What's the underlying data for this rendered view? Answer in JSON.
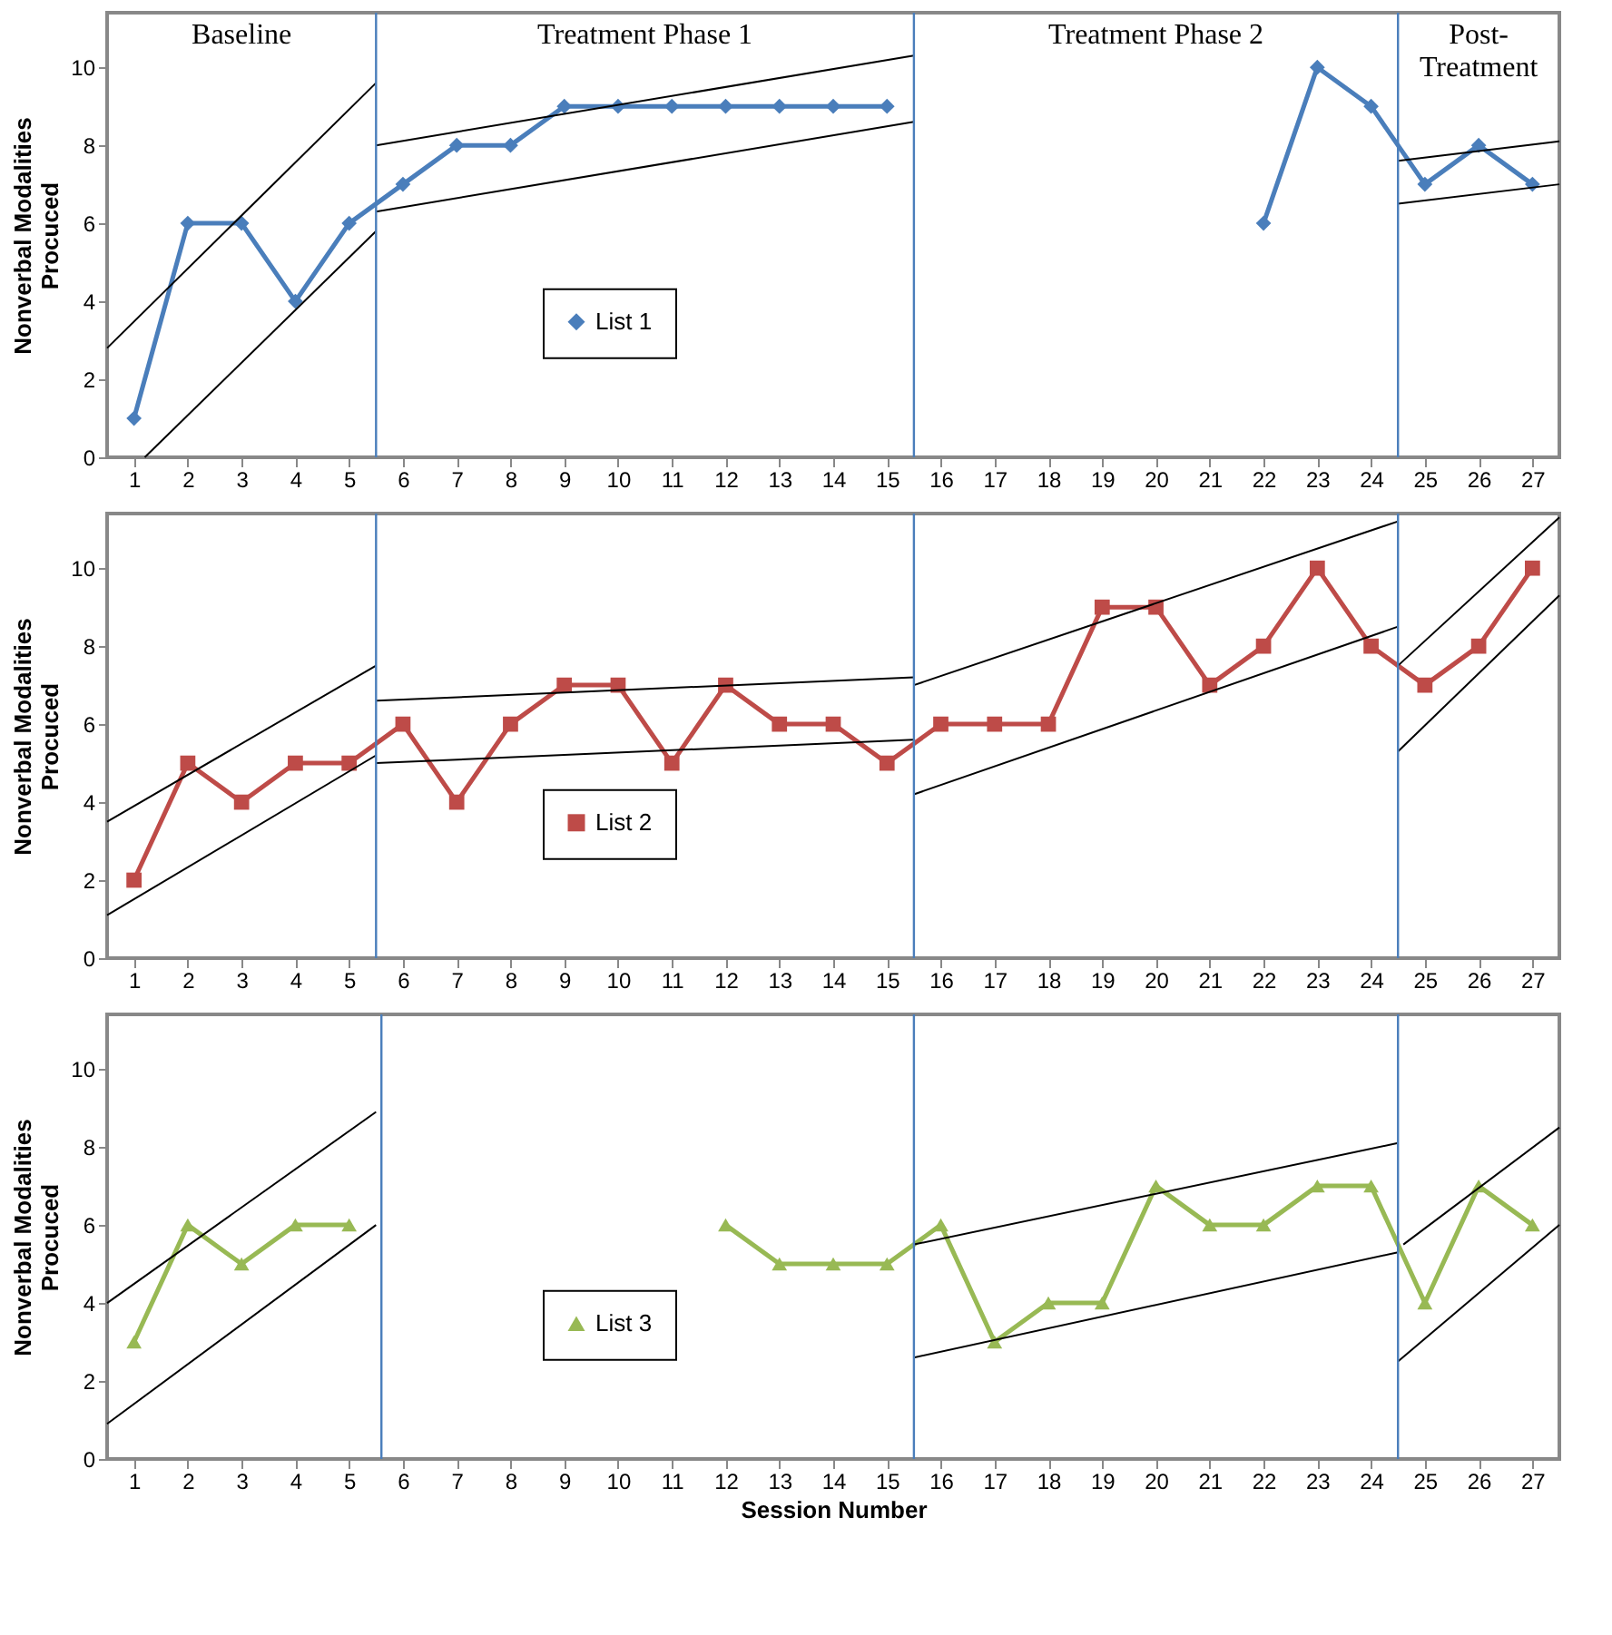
{
  "chart_data": [
    {
      "type": "line",
      "ylabel": "Nonverbal Modalities Procuced",
      "x": [
        1,
        2,
        3,
        4,
        5,
        6,
        7,
        8,
        9,
        10,
        11,
        12,
        13,
        14,
        15,
        16,
        17,
        18,
        19,
        20,
        21,
        22,
        23,
        24,
        25,
        26,
        27
      ],
      "xlim": [
        0.5,
        27.5
      ],
      "xticks": [
        1,
        2,
        3,
        4,
        5,
        6,
        7,
        8,
        9,
        10,
        11,
        12,
        13,
        14,
        15,
        16,
        17,
        18,
        19,
        20,
        21,
        22,
        23,
        24,
        25,
        26,
        27
      ],
      "ylim": [
        0,
        11.4
      ],
      "yticks": [
        0,
        2,
        4,
        6,
        8,
        10
      ],
      "grid": false,
      "legend": "center",
      "series": [
        {
          "name": "List 1",
          "color": "#4a7ebb",
          "marker": "diamond",
          "values": [
            1,
            6,
            6,
            4,
            6,
            7,
            8,
            8,
            9,
            9,
            9,
            9,
            9,
            9,
            9,
            null,
            null,
            null,
            null,
            null,
            null,
            6,
            10,
            9,
            7,
            8,
            7
          ]
        },
        {
          "color": "#000000",
          "marker": "none",
          "x": [
            0.5,
            5.5
          ],
          "values": [
            2.8,
            9.6
          ]
        },
        {
          "color": "#000000",
          "marker": "none",
          "x": [
            1.2,
            5.5
          ],
          "values": [
            0,
            5.8
          ]
        },
        {
          "color": "#000000",
          "marker": "none",
          "x": [
            5.5,
            15.5
          ],
          "values": [
            8.0,
            10.3
          ]
        },
        {
          "color": "#000000",
          "marker": "none",
          "x": [
            5.5,
            15.5
          ],
          "values": [
            6.3,
            8.6
          ]
        },
        {
          "color": "#000000",
          "marker": "none",
          "x": [
            24.5,
            27.5
          ],
          "values": [
            7.6,
            8.1
          ]
        },
        {
          "color": "#000000",
          "marker": "none",
          "x": [
            24.5,
            27.5
          ],
          "values": [
            6.5,
            7.0
          ]
        }
      ],
      "ref_lines": [
        {
          "axis": "x",
          "value": 5.5,
          "color": "#4a7ebb"
        },
        {
          "axis": "x",
          "value": 15.5,
          "color": "#4a7ebb"
        },
        {
          "axis": "x",
          "value": 24.5,
          "color": "#4a7ebb"
        }
      ],
      "annotations": [
        "Baseline",
        "Treatment Phase 1",
        "Treatment Phase 2",
        "Post-Treatment"
      ]
    },
    {
      "type": "line",
      "ylabel": "Nonverbal Modalities Procuced",
      "x": [
        1,
        2,
        3,
        4,
        5,
        6,
        7,
        8,
        9,
        10,
        11,
        12,
        13,
        14,
        15,
        16,
        17,
        18,
        19,
        20,
        21,
        22,
        23,
        24,
        25,
        26,
        27
      ],
      "xlim": [
        0.5,
        27.5
      ],
      "xticks": [
        1,
        2,
        3,
        4,
        5,
        6,
        7,
        8,
        9,
        10,
        11,
        12,
        13,
        14,
        15,
        16,
        17,
        18,
        19,
        20,
        21,
        22,
        23,
        24,
        25,
        26,
        27
      ],
      "ylim": [
        0,
        11.4
      ],
      "yticks": [
        0,
        2,
        4,
        6,
        8,
        10
      ],
      "grid": false,
      "legend": "center",
      "series": [
        {
          "name": "List 2",
          "color": "#be4b48",
          "marker": "square",
          "values": [
            2,
            5,
            4,
            5,
            5,
            6,
            4,
            6,
            7,
            7,
            5,
            7,
            6,
            6,
            5,
            6,
            6,
            6,
            9,
            9,
            7,
            8,
            10,
            8,
            7,
            8,
            10
          ]
        },
        {
          "color": "#000000",
          "marker": "none",
          "x": [
            0.5,
            5.5
          ],
          "values": [
            3.5,
            7.5
          ]
        },
        {
          "color": "#000000",
          "marker": "none",
          "x": [
            0.5,
            5.5
          ],
          "values": [
            1.1,
            5.2
          ]
        },
        {
          "color": "#000000",
          "marker": "none",
          "x": [
            5.5,
            15.5
          ],
          "values": [
            6.6,
            7.2
          ]
        },
        {
          "color": "#000000",
          "marker": "none",
          "x": [
            5.5,
            15.5
          ],
          "values": [
            5.0,
            5.6
          ]
        },
        {
          "color": "#000000",
          "marker": "none",
          "x": [
            15.5,
            24.5
          ],
          "values": [
            7.0,
            11.2
          ]
        },
        {
          "color": "#000000",
          "marker": "none",
          "x": [
            15.5,
            24.5
          ],
          "values": [
            4.2,
            8.5
          ]
        },
        {
          "color": "#000000",
          "marker": "none",
          "x": [
            24.5,
            27.5
          ],
          "values": [
            7.5,
            11.3
          ]
        },
        {
          "color": "#000000",
          "marker": "none",
          "x": [
            24.5,
            27.5
          ],
          "values": [
            5.3,
            9.3
          ]
        }
      ],
      "ref_lines": [
        {
          "axis": "x",
          "value": 5.5,
          "color": "#4a7ebb"
        },
        {
          "axis": "x",
          "value": 15.5,
          "color": "#4a7ebb"
        },
        {
          "axis": "x",
          "value": 24.5,
          "color": "#4a7ebb"
        }
      ]
    },
    {
      "type": "line",
      "ylabel": "Nonverbal Modalities Procuced",
      "xlabel": "Session Number",
      "x": [
        1,
        2,
        3,
        4,
        5,
        6,
        7,
        8,
        9,
        10,
        11,
        12,
        13,
        14,
        15,
        16,
        17,
        18,
        19,
        20,
        21,
        22,
        23,
        24,
        25,
        26,
        27
      ],
      "xlim": [
        0.5,
        27.5
      ],
      "xticks": [
        1,
        2,
        3,
        4,
        5,
        6,
        7,
        8,
        9,
        10,
        11,
        12,
        13,
        14,
        15,
        16,
        17,
        18,
        19,
        20,
        21,
        22,
        23,
        24,
        25,
        26,
        27
      ],
      "ylim": [
        0,
        11.4
      ],
      "yticks": [
        0,
        2,
        4,
        6,
        8,
        10
      ],
      "grid": false,
      "legend": "center",
      "series": [
        {
          "name": "List 3",
          "color": "#98b954",
          "marker": "triangle",
          "values": [
            3,
            6,
            5,
            6,
            6,
            null,
            null,
            null,
            null,
            null,
            null,
            6,
            5,
            5,
            5,
            6,
            3,
            4,
            4,
            7,
            6,
            6,
            7,
            7,
            4,
            7,
            6
          ]
        },
        {
          "color": "#000000",
          "marker": "none",
          "x": [
            0.5,
            5.5
          ],
          "values": [
            4.0,
            8.9
          ]
        },
        {
          "color": "#000000",
          "marker": "none",
          "x": [
            0.5,
            5.5
          ],
          "values": [
            0.9,
            6.0
          ]
        },
        {
          "color": "#000000",
          "marker": "none",
          "x": [
            15.5,
            24.5
          ],
          "values": [
            5.5,
            8.1
          ]
        },
        {
          "color": "#000000",
          "marker": "none",
          "x": [
            15.5,
            24.5
          ],
          "values": [
            2.6,
            5.3
          ]
        },
        {
          "color": "#000000",
          "marker": "none",
          "x": [
            24.6,
            27.5
          ],
          "values": [
            5.5,
            8.5
          ]
        },
        {
          "color": "#000000",
          "marker": "none",
          "x": [
            24.5,
            27.5
          ],
          "values": [
            2.5,
            6.0
          ]
        }
      ],
      "ref_lines": [
        {
          "axis": "x",
          "value": 5.6,
          "color": "#4a7ebb"
        },
        {
          "axis": "x",
          "value": 15.5,
          "color": "#4a7ebb"
        },
        {
          "axis": "x",
          "value": 24.5,
          "color": "#4a7ebb"
        }
      ]
    }
  ]
}
